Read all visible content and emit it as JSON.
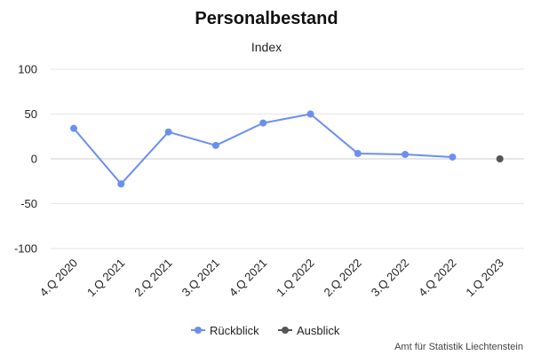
{
  "chart_data": {
    "type": "line",
    "title": "Personalbestand",
    "subtitle": "Index",
    "xlabel": "",
    "ylabel": "",
    "categories": [
      "4.Q 2020",
      "1.Q 2021",
      "2.Q 2021",
      "3.Q 2021",
      "4.Q 2021",
      "1.Q 2022",
      "2.Q 2022",
      "3.Q 2022",
      "4.Q 2022",
      "1.Q 2023"
    ],
    "ylim": [
      -100,
      100
    ],
    "yticks": [
      100,
      50,
      0,
      -50,
      -100
    ],
    "grid": true,
    "legend_position": "bottom-center",
    "series": [
      {
        "name": "Rückblick",
        "color": "#6b8ff0",
        "values": [
          34,
          -28,
          30,
          15,
          40,
          50,
          6,
          5,
          2,
          null
        ]
      },
      {
        "name": "Ausblick",
        "color": "#555555",
        "values": [
          null,
          null,
          null,
          null,
          null,
          null,
          null,
          null,
          null,
          0
        ]
      }
    ],
    "credit": "Amt für Statistik Liechtenstein"
  }
}
